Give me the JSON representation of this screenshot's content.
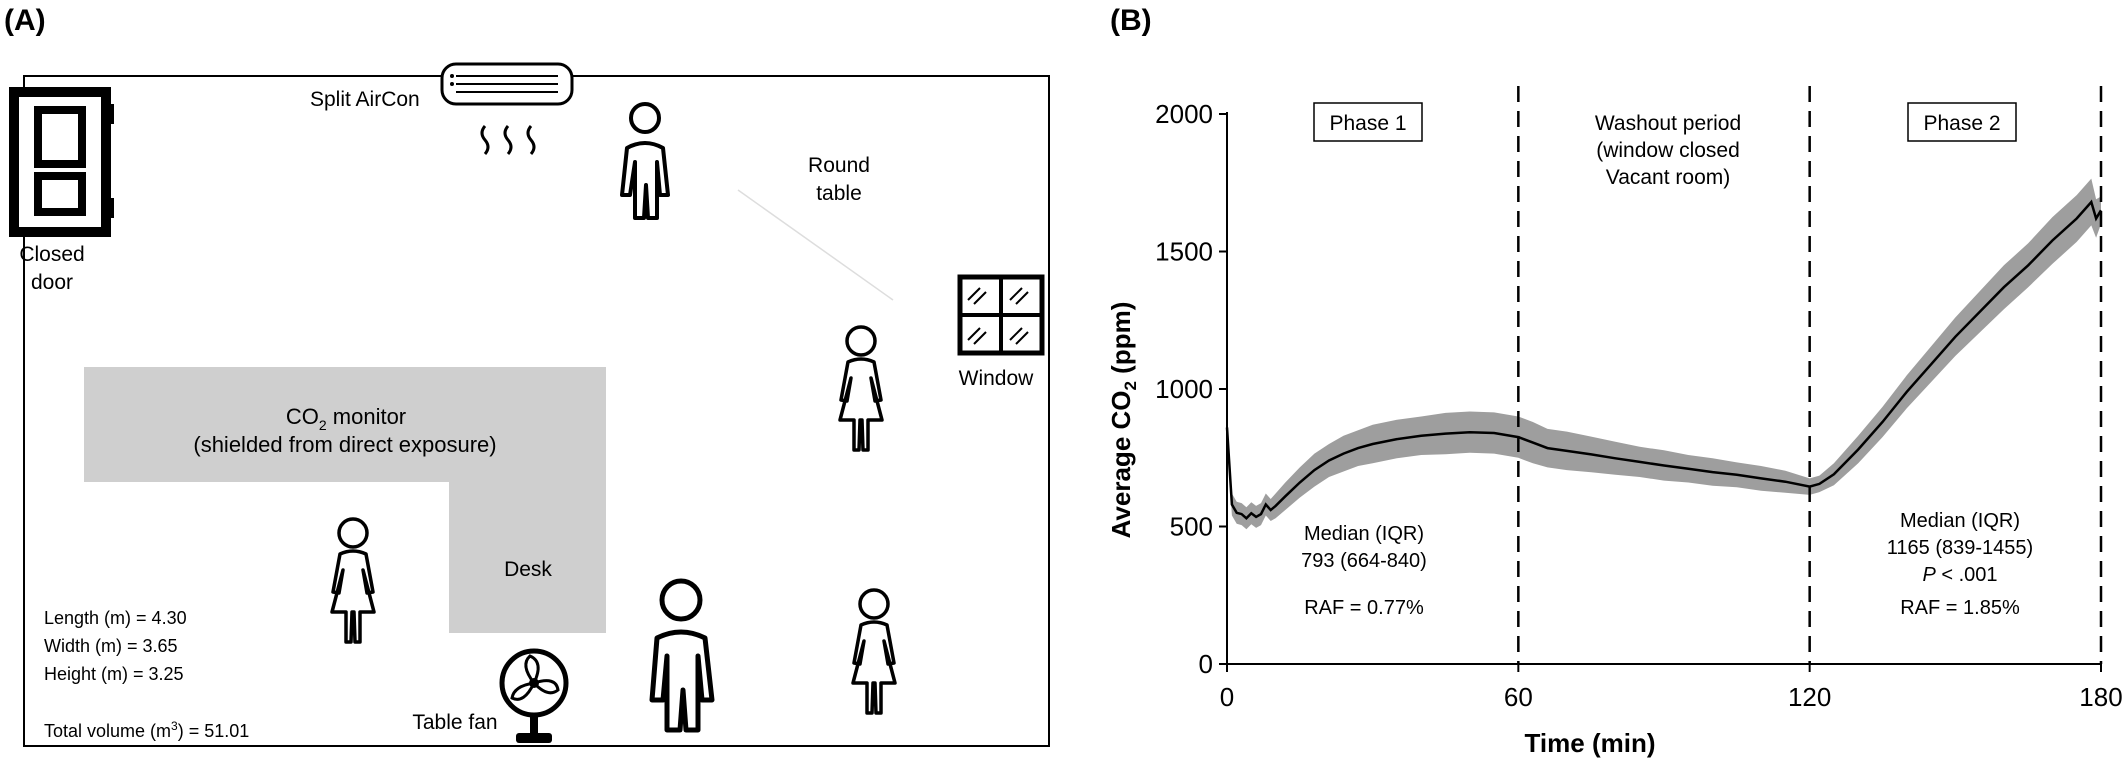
{
  "panel_a": {
    "label": "(A)",
    "split_aircon": "Split AirCon",
    "round_table_1": "Round",
    "round_table_2": "table",
    "closed_door_1": "Closed",
    "closed_door_2": "door",
    "window": "Window",
    "co2_monitor_pre": "CO",
    "co2_monitor_sub": "2",
    "co2_monitor_post": " monitor",
    "co2_monitor_note": "(shielded from direct exposure)",
    "desk": "Desk",
    "table_fan": "Table fan",
    "length": "Length (m) = 4.30",
    "width": "Width (m) = 3.65",
    "height": "Height (m) = 3.25",
    "total_volume_pre": "Total volume (m",
    "total_volume_sup": "3",
    "total_volume_post": ") = 51.01"
  },
  "panel_b": {
    "label": "(B)",
    "phase1": "Phase 1",
    "phase2": "Phase 2",
    "washout_1": "Washout period",
    "washout_2": "(window closed",
    "washout_3": "Vacant room)",
    "p1_median_label": "Median (IQR)",
    "p1_median_value": "793 (664-840)",
    "p1_raf": "RAF = 0.77%",
    "p2_median_label": "Median (IQR)",
    "p2_median_value": "1165 (839-1455)",
    "p2_p_pre": "P",
    "p2_p_post": " < .001",
    "p2_raf": "RAF = 1.85%"
  },
  "chart_data": {
    "type": "line",
    "xlabel": "Time (min)",
    "ylabel_pre": "Average CO",
    "ylabel_sub": "2",
    "ylabel_post": "  (ppm)",
    "xlim": [
      0,
      180
    ],
    "ylim": [
      0,
      2000
    ],
    "x_ticks": [
      0,
      60,
      120,
      180
    ],
    "y_ticks": [
      0,
      500,
      1000,
      1500,
      2000
    ],
    "vlines": [
      60,
      120,
      180
    ],
    "series": [
      {
        "x": [
          0,
          1,
          2,
          3,
          4,
          5,
          6,
          7,
          8,
          9,
          10,
          12,
          15,
          18,
          21,
          24,
          27,
          30,
          35,
          40,
          45,
          50,
          55,
          60,
          63,
          66,
          70,
          75,
          80,
          85,
          90,
          95,
          100,
          105,
          110,
          115,
          120,
          122,
          125,
          130,
          135,
          140,
          145,
          150,
          155,
          160,
          165,
          170,
          175,
          178,
          179,
          180
        ],
        "y": [
          860,
          580,
          550,
          545,
          530,
          548,
          535,
          545,
          580,
          560,
          575,
          610,
          660,
          705,
          740,
          765,
          785,
          800,
          818,
          830,
          838,
          843,
          840,
          825,
          805,
          785,
          775,
          762,
          748,
          735,
          722,
          710,
          698,
          688,
          675,
          663,
          645,
          655,
          690,
          780,
          880,
          990,
          1090,
          1190,
          1280,
          1370,
          1450,
          1540,
          1620,
          1680,
          1620,
          1650
        ],
        "band_half_width": [
          30,
          40,
          40,
          40,
          40,
          40,
          40,
          40,
          40,
          40,
          45,
          50,
          55,
          60,
          60,
          65,
          65,
          70,
          70,
          70,
          75,
          75,
          75,
          75,
          75,
          70,
          70,
          65,
          60,
          55,
          55,
          50,
          50,
          45,
          45,
          40,
          30,
          30,
          40,
          50,
          55,
          60,
          65,
          70,
          75,
          80,
          80,
          85,
          85,
          85,
          70,
          50
        ]
      }
    ],
    "grid": false
  }
}
